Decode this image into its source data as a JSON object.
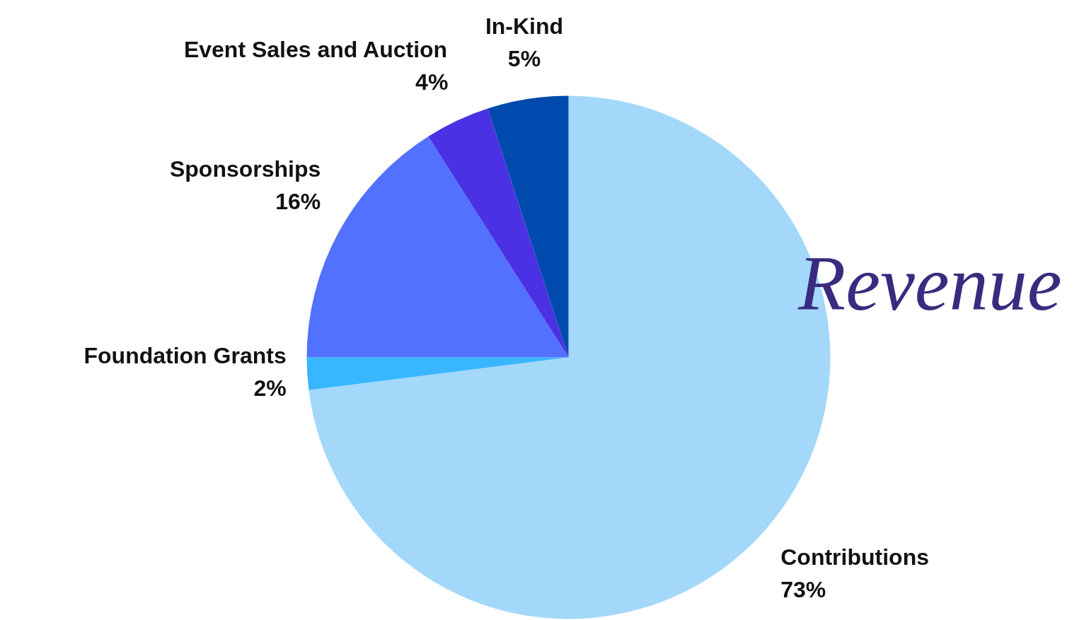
{
  "chart_data": {
    "type": "pie",
    "title": "Revenue",
    "categories": [
      "Contributions",
      "Foundation Grants",
      "Sponsorships",
      "Event Sales and Auction",
      "In-Kind"
    ],
    "values": [
      73,
      2,
      16,
      4,
      5
    ],
    "colors": [
      "#a3d8fa",
      "#38b6ff",
      "#5271ff",
      "#4a32e4",
      "#004aad"
    ],
    "value_labels": [
      "73%",
      "2%",
      "16%",
      "4%",
      "5%"
    ]
  }
}
